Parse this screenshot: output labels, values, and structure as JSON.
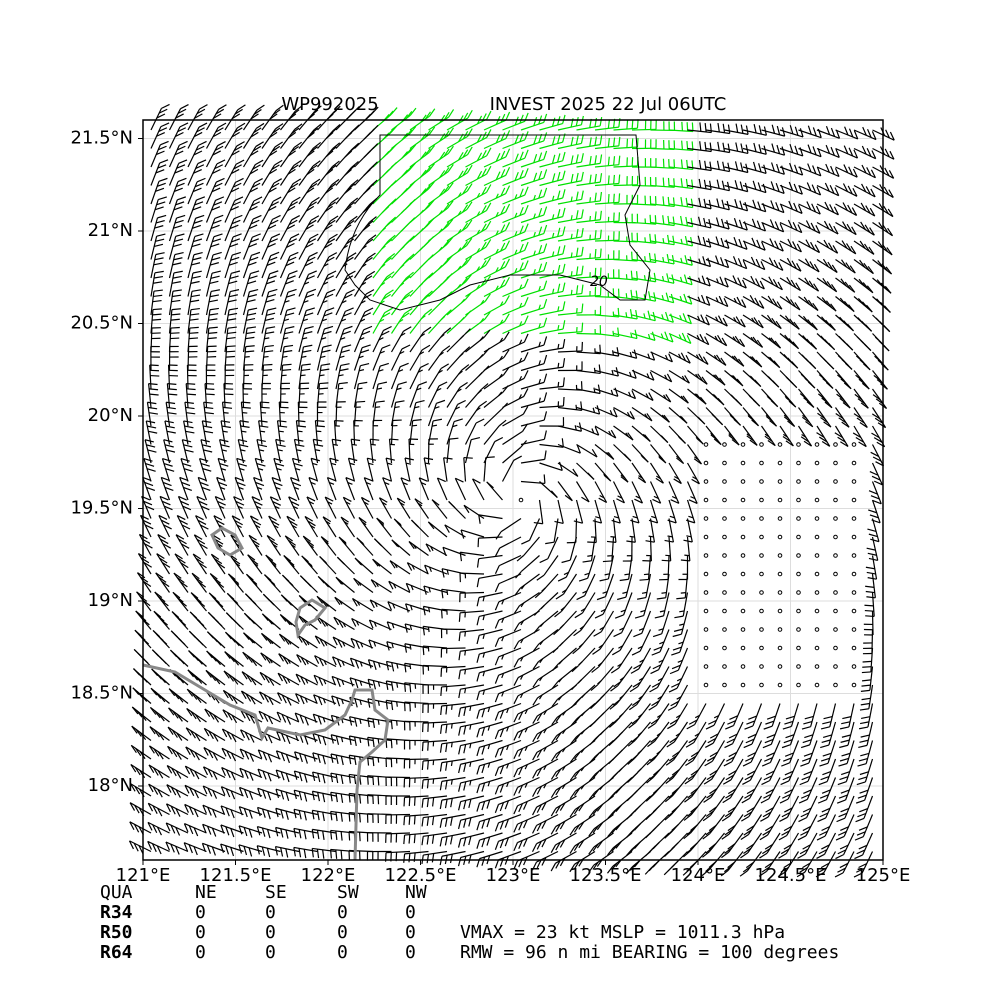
{
  "chart_data": {
    "type": "map",
    "title_left": "WP992025",
    "title_right": "INVEST 2025 22 Jul 06UTC",
    "xlim": [
      121,
      125
    ],
    "ylim": [
      17.6,
      21.6
    ],
    "xticks": [
      {
        "value": 121,
        "label": "121°E"
      },
      {
        "value": 121.5,
        "label": "121.5°E"
      },
      {
        "value": 122,
        "label": "122°E"
      },
      {
        "value": 122.5,
        "label": "122.5°E"
      },
      {
        "value": 123,
        "label": "123°E"
      },
      {
        "value": 123.5,
        "label": "123.5°E"
      },
      {
        "value": 124,
        "label": "124°E"
      },
      {
        "value": 124.5,
        "label": "124.5°E"
      },
      {
        "value": 125,
        "label": "125°E"
      }
    ],
    "yticks": [
      {
        "value": 18,
        "label": "18°N"
      },
      {
        "value": 18.5,
        "label": "18.5°N"
      },
      {
        "value": 19,
        "label": "19°N"
      },
      {
        "value": 19.5,
        "label": "19.5°N"
      },
      {
        "value": 20,
        "label": "20°N"
      },
      {
        "value": 20.5,
        "label": "20.5°N"
      },
      {
        "value": 21,
        "label": "21°N"
      },
      {
        "value": 21.5,
        "label": "21.5°N"
      }
    ],
    "grid": true,
    "contour_label": "20"
  },
  "table": {
    "headers": [
      "QUA",
      "NE",
      "SE",
      "SW",
      "NW"
    ],
    "rows": [
      [
        "R34",
        0,
        0,
        0,
        0
      ],
      [
        "R50",
        0,
        0,
        0,
        0
      ],
      [
        "R64",
        0,
        0,
        0,
        0
      ]
    ]
  },
  "info": [
    "VMAX =  23 kt MSLP = 1011.3 hPa",
    "RMW =  96 n mi BEARING = 100 degrees"
  ]
}
